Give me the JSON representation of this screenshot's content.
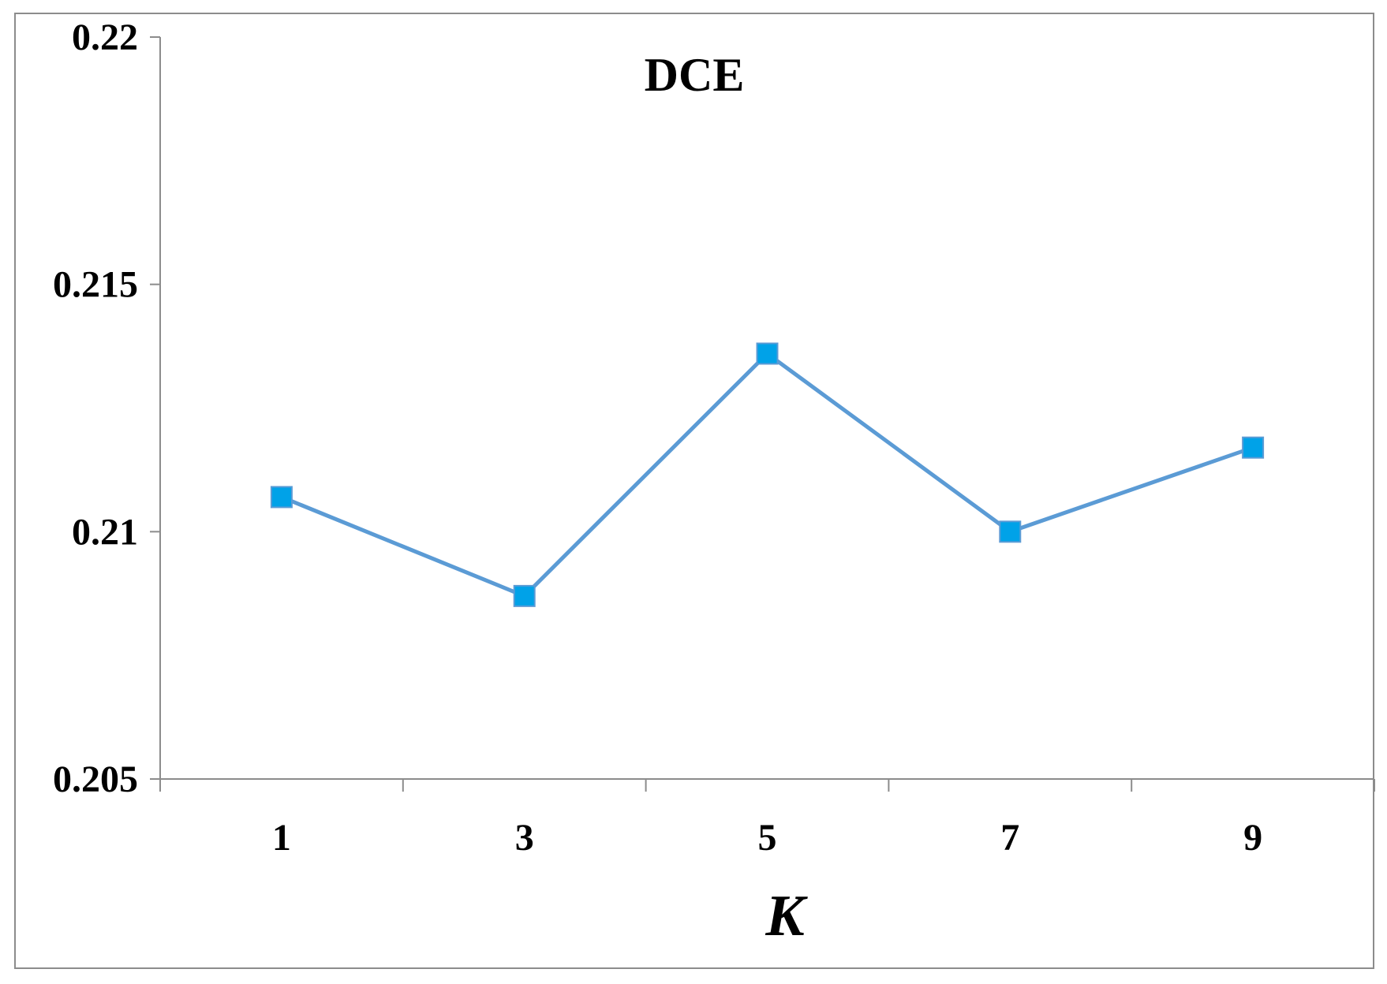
{
  "chart_data": {
    "type": "line",
    "title": "DCE",
    "xlabel": "K",
    "ylabel": "",
    "categories": [
      "1",
      "3",
      "5",
      "7",
      "9"
    ],
    "series": [
      {
        "values": [
          0.2107,
          0.2087,
          0.2136,
          0.21,
          0.2117
        ]
      }
    ],
    "ylim": [
      0.205,
      0.22
    ],
    "yticks": [
      "0.205",
      "0.21",
      "0.215",
      "0.22"
    ],
    "grid": false,
    "legend": "none",
    "colors": {
      "line": "#5b9bd5",
      "marker": "#00a2e8",
      "axis": "#8c8c8c"
    },
    "marker": "square"
  }
}
